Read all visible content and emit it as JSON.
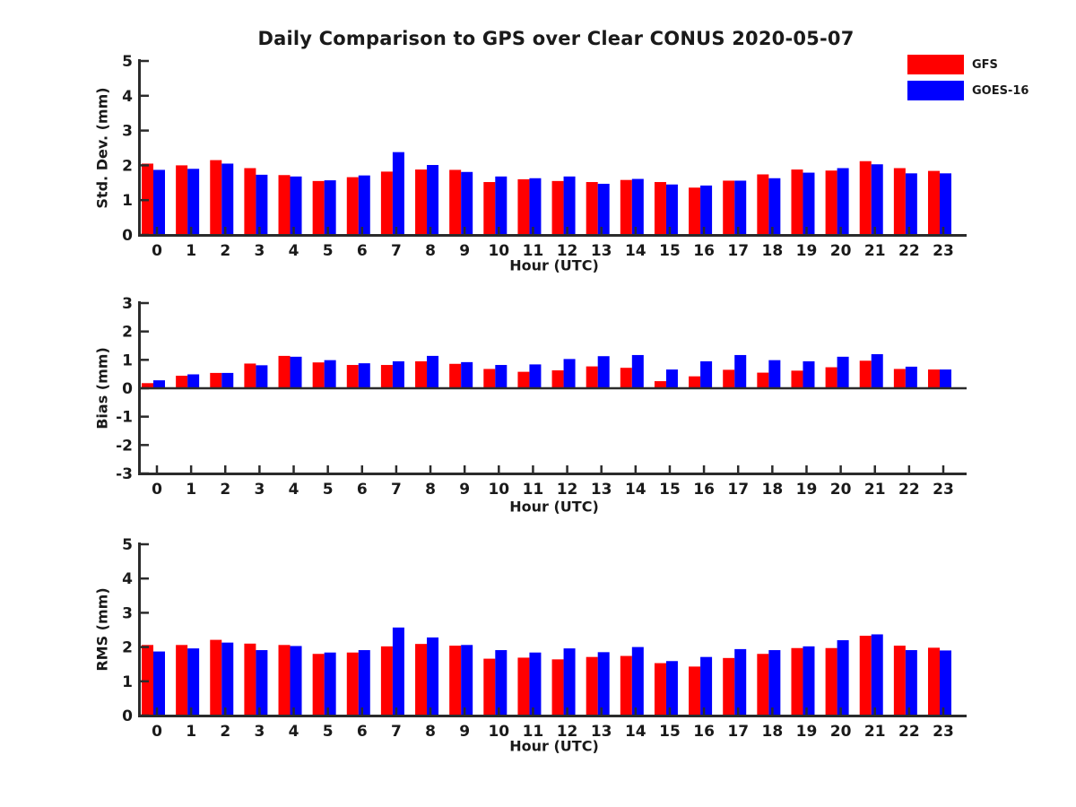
{
  "title": "Daily Comparison to GPS over Clear CONUS 2020-05-07",
  "colors": {
    "gfs": "#ff0000",
    "goes16": "#0000ff",
    "axis": "#2b2b2b",
    "text": "#1a1a1a"
  },
  "legend": {
    "position": "top-right",
    "items": [
      {
        "label": "GFS",
        "color": "#ff0000"
      },
      {
        "label": "GOES-16",
        "color": "#0000ff"
      }
    ]
  },
  "chart_data": [
    {
      "type": "bar",
      "title": "",
      "ylabel": "Std. Dev. (mm)",
      "xlabel": "Hour (UTC)",
      "ylim": [
        0,
        5
      ],
      "yticks": [
        0,
        1,
        2,
        3,
        4,
        5
      ],
      "grid": false,
      "categories": [
        "0",
        "1",
        "2",
        "3",
        "4",
        "5",
        "6",
        "7",
        "8",
        "9",
        "10",
        "11",
        "12",
        "13",
        "14",
        "15",
        "16",
        "17",
        "18",
        "19",
        "20",
        "21",
        "22",
        "23"
      ],
      "series": [
        {
          "name": "GFS",
          "color": "#ff0000",
          "values": [
            2.05,
            2.0,
            2.15,
            1.92,
            1.72,
            1.55,
            1.66,
            1.82,
            1.88,
            1.87,
            1.52,
            1.6,
            1.55,
            1.52,
            1.58,
            1.52,
            1.36,
            1.56,
            1.74,
            1.88,
            1.85,
            2.12,
            1.92,
            1.84
          ]
        },
        {
          "name": "GOES-16",
          "color": "#0000ff",
          "values": [
            1.87,
            1.9,
            2.05,
            1.73,
            1.68,
            1.57,
            1.71,
            2.38,
            2.01,
            1.81,
            1.68,
            1.63,
            1.68,
            1.47,
            1.61,
            1.45,
            1.42,
            1.56,
            1.63,
            1.79,
            1.92,
            2.03,
            1.77,
            1.77
          ]
        }
      ]
    },
    {
      "type": "bar",
      "title": "",
      "ylabel": "Bias (mm)",
      "xlabel": "Hour (UTC)",
      "ylim": [
        -3,
        3
      ],
      "yticks": [
        -3,
        -2,
        -1,
        0,
        1,
        2,
        3
      ],
      "grid": false,
      "zero_line": true,
      "categories": [
        "0",
        "1",
        "2",
        "3",
        "4",
        "5",
        "6",
        "7",
        "8",
        "9",
        "10",
        "11",
        "12",
        "13",
        "14",
        "15",
        "16",
        "17",
        "18",
        "19",
        "20",
        "21",
        "22",
        "23"
      ],
      "series": [
        {
          "name": "GFS",
          "color": "#ff0000",
          "values": [
            0.18,
            0.44,
            0.54,
            0.87,
            1.14,
            0.91,
            0.82,
            0.82,
            0.95,
            0.86,
            0.68,
            0.58,
            0.63,
            0.77,
            0.72,
            0.25,
            0.42,
            0.65,
            0.55,
            0.62,
            0.74,
            0.97,
            0.68,
            0.66
          ]
        },
        {
          "name": "GOES-16",
          "color": "#0000ff",
          "values": [
            0.28,
            0.49,
            0.54,
            0.81,
            1.11,
            0.99,
            0.88,
            0.95,
            1.14,
            0.92,
            0.82,
            0.84,
            1.03,
            1.13,
            1.17,
            0.66,
            0.95,
            1.17,
            0.99,
            0.95,
            1.11,
            1.2,
            0.76,
            0.66
          ]
        }
      ]
    },
    {
      "type": "bar",
      "title": "",
      "ylabel": "RMS (mm)",
      "xlabel": "Hour (UTC)",
      "ylim": [
        0,
        5
      ],
      "yticks": [
        0,
        1,
        2,
        3,
        4,
        5
      ],
      "grid": false,
      "categories": [
        "0",
        "1",
        "2",
        "3",
        "4",
        "5",
        "6",
        "7",
        "8",
        "9",
        "10",
        "11",
        "12",
        "13",
        "14",
        "15",
        "16",
        "17",
        "18",
        "19",
        "20",
        "21",
        "22",
        "23"
      ],
      "series": [
        {
          "name": "GFS",
          "color": "#ff0000",
          "values": [
            2.06,
            2.06,
            2.21,
            2.1,
            2.06,
            1.8,
            1.84,
            2.02,
            2.09,
            2.04,
            1.66,
            1.69,
            1.64,
            1.71,
            1.74,
            1.53,
            1.43,
            1.68,
            1.8,
            1.97,
            1.97,
            2.33,
            2.04,
            1.98
          ]
        },
        {
          "name": "GOES-16",
          "color": "#0000ff",
          "values": [
            1.87,
            1.96,
            2.13,
            1.91,
            2.03,
            1.84,
            1.91,
            2.57,
            2.28,
            2.06,
            1.91,
            1.84,
            1.96,
            1.85,
            2.0,
            1.59,
            1.71,
            1.94,
            1.91,
            2.02,
            2.2,
            2.37,
            1.91,
            1.9
          ]
        }
      ]
    }
  ]
}
